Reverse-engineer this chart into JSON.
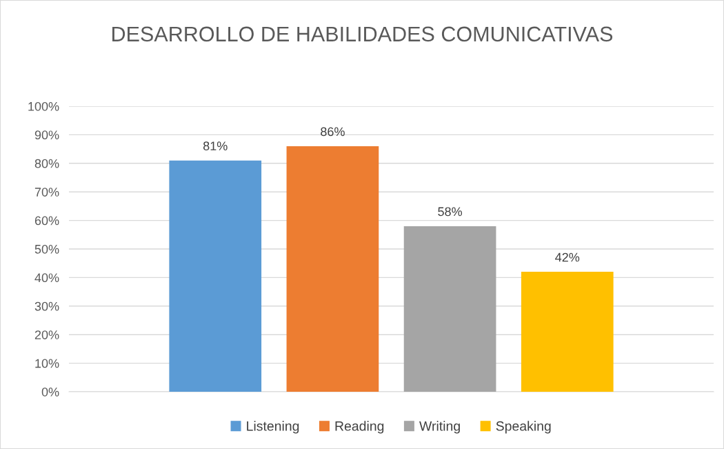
{
  "chart_data": {
    "type": "bar",
    "title": "DESARROLLO DE HABILIDADES COMUNICATIVAS",
    "categories": [
      null
    ],
    "series": [
      {
        "name": "Listening",
        "color": "#5b9bd5",
        "values": [
          81
        ],
        "value_labels": [
          "81%"
        ]
      },
      {
        "name": "Reading",
        "color": "#ed7d31",
        "values": [
          86
        ],
        "value_labels": [
          "86%"
        ]
      },
      {
        "name": "Writing",
        "color": "#a5a5a5",
        "values": [
          58
        ],
        "value_labels": [
          "58%"
        ]
      },
      {
        "name": "Speaking",
        "color": "#ffc000",
        "values": [
          42
        ],
        "value_labels": [
          "42%"
        ]
      }
    ],
    "ylim": [
      0,
      100
    ],
    "yticks": [
      {
        "value": 0,
        "label": "0%"
      },
      {
        "value": 10,
        "label": "10%"
      },
      {
        "value": 20,
        "label": "20%"
      },
      {
        "value": 30,
        "label": "30%"
      },
      {
        "value": 40,
        "label": "40%"
      },
      {
        "value": 50,
        "label": "50%"
      },
      {
        "value": 60,
        "label": "60%"
      },
      {
        "value": 70,
        "label": "70%"
      },
      {
        "value": 80,
        "label": "80%"
      },
      {
        "value": 90,
        "label": "90%"
      },
      {
        "value": 100,
        "label": "100%"
      }
    ],
    "grid": "y",
    "legend": "bottom"
  }
}
